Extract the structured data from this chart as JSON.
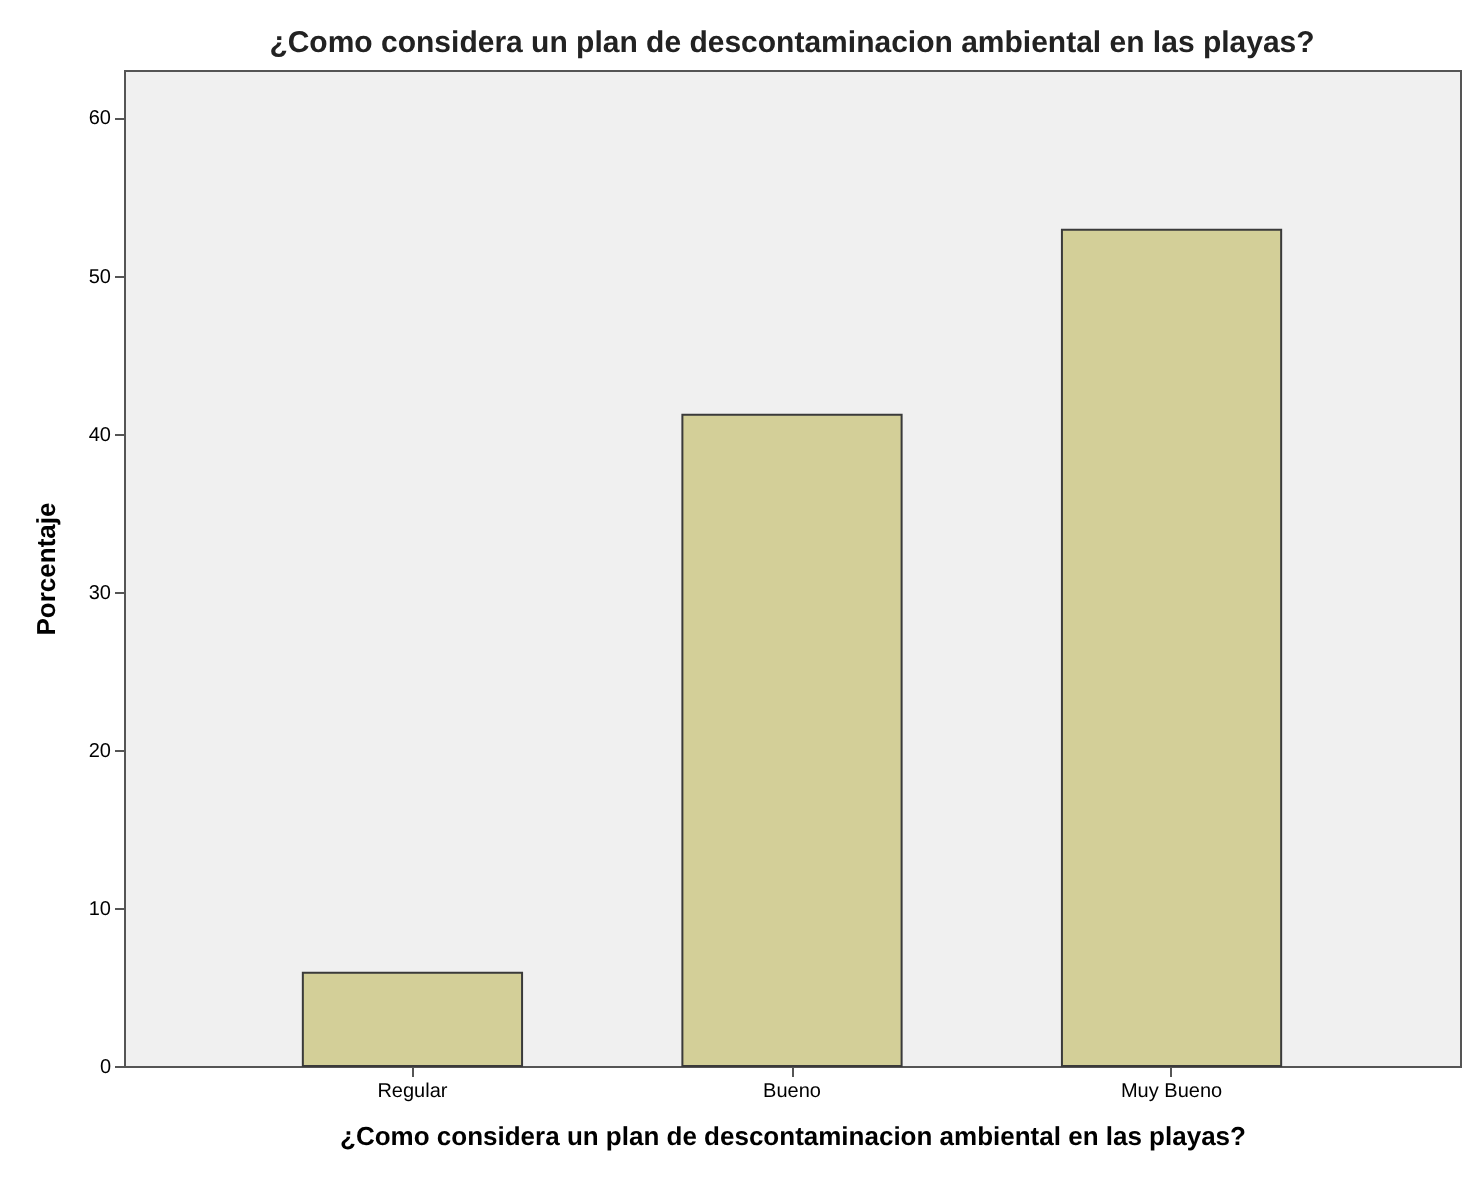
{
  "chart_data": {
    "type": "bar",
    "title": "¿Como considera un plan de descontaminacion ambiental en las playas?",
    "xlabel": "¿Como considera un plan de descontaminacion ambiental en las playas?",
    "ylabel": "Porcentaje",
    "categories": [
      "Regular",
      "Bueno",
      "Muy Bueno"
    ],
    "values": [
      5.9,
      41.2,
      52.9
    ],
    "color": "#d3cf98",
    "ylim": [
      0,
      63
    ],
    "yticks": [
      0,
      10,
      20,
      30,
      40,
      50,
      60
    ],
    "grid": false
  }
}
